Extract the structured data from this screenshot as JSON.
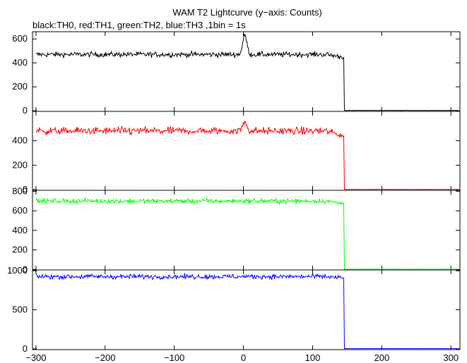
{
  "title": "WAM T2 Lightcurve (y−axis: Counts)",
  "subtitle": "black:TH0, red:TH1, green:TH2, blue:TH3 ,1bin = 1s",
  "chart_data": [
    {
      "type": "line",
      "series": [
        {
          "color": "#000000",
          "baseline": 470,
          "noise": 22,
          "peak": 160,
          "end_level": 448,
          "off_level": 2
        }
      ],
      "xlim": [
        -305,
        313
      ],
      "ylim": [
        -5,
        660
      ],
      "yticks": [
        0,
        200,
        400,
        600
      ],
      "ytick_labels": [
        "0",
        "200",
        "400",
        "600"
      ],
      "cutoff_x": 145
    },
    {
      "type": "line",
      "series": [
        {
          "color": "#ff0000",
          "baseline": 480,
          "noise": 30,
          "peak": 75,
          "end_level": 440,
          "off_level": 2
        }
      ],
      "xlim": [
        -305,
        313
      ],
      "ylim": [
        -5,
        640
      ],
      "yticks": [
        0,
        200,
        400
      ],
      "ytick_labels": [
        "0",
        "200",
        "400"
      ],
      "cutoff_x": 145
    },
    {
      "type": "line",
      "series": [
        {
          "color": "#00ff00",
          "baseline": 700,
          "noise": 25,
          "peak": 0,
          "end_level": 672,
          "off_level": 2
        }
      ],
      "xlim": [
        -305,
        313
      ],
      "ylim": [
        -5,
        810
      ],
      "yticks": [
        0,
        200,
        400,
        600,
        800
      ],
      "ytick_labels": [
        "0",
        "200",
        "400",
        "600",
        "800"
      ],
      "cutoff_x": 145
    },
    {
      "type": "line",
      "series": [
        {
          "color": "#0000ff",
          "baseline": 925,
          "noise": 30,
          "peak": 0,
          "end_level": 905,
          "off_level": 2
        }
      ],
      "xlim": [
        -305,
        313
      ],
      "ylim": [
        -10,
        1010
      ],
      "yticks": [
        0,
        500,
        1000
      ],
      "ytick_labels": [
        "0",
        "500",
        "1000"
      ],
      "cutoff_x": 145
    }
  ],
  "xticks": [
    -300,
    -200,
    -100,
    0,
    100,
    200,
    300
  ],
  "xtick_labels": [
    "−300",
    "−200",
    "−100",
    "0",
    "100",
    "200",
    "300"
  ]
}
